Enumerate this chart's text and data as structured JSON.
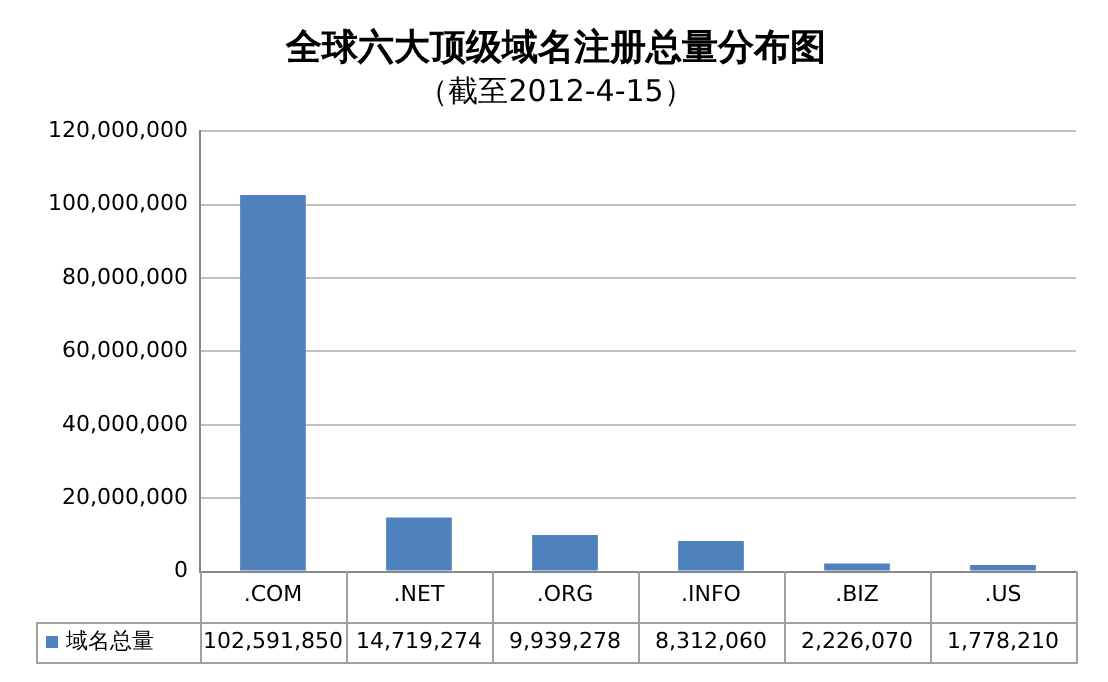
{
  "chart_data": {
    "type": "bar",
    "title": "全球六大顶级域名注册总量分布图",
    "subtitle": "（截至2012-4-15）",
    "categories": [
      ".COM",
      ".NET",
      ".ORG",
      ".INFO",
      ".BIZ",
      ".US"
    ],
    "series": [
      {
        "name": "域名总量",
        "color": "#4f81bd",
        "values": [
          102591850,
          14719274,
          9939278,
          8312060,
          2226070,
          1778210
        ],
        "value_labels": [
          "102,591,850",
          "14,719,274",
          "9,939,278",
          "8,312,060",
          "2,226,070",
          "1,778,210"
        ]
      }
    ],
    "ylim": [
      0,
      120000000
    ],
    "yticks": [
      0,
      {
        "value": 20000000,
        "label": "20,000,000"
      },
      {
        "value": 40000000,
        "label": "40,000,000"
      },
      {
        "value": 60000000,
        "label": "60,000,000"
      },
      {
        "value": 80000000,
        "label": "80,000,000"
      },
      {
        "value": 100000000,
        "label": "100,000,000"
      },
      {
        "value": 120000000,
        "label": "120,000,000"
      }
    ],
    "grid": "y",
    "legend": "bottom"
  }
}
